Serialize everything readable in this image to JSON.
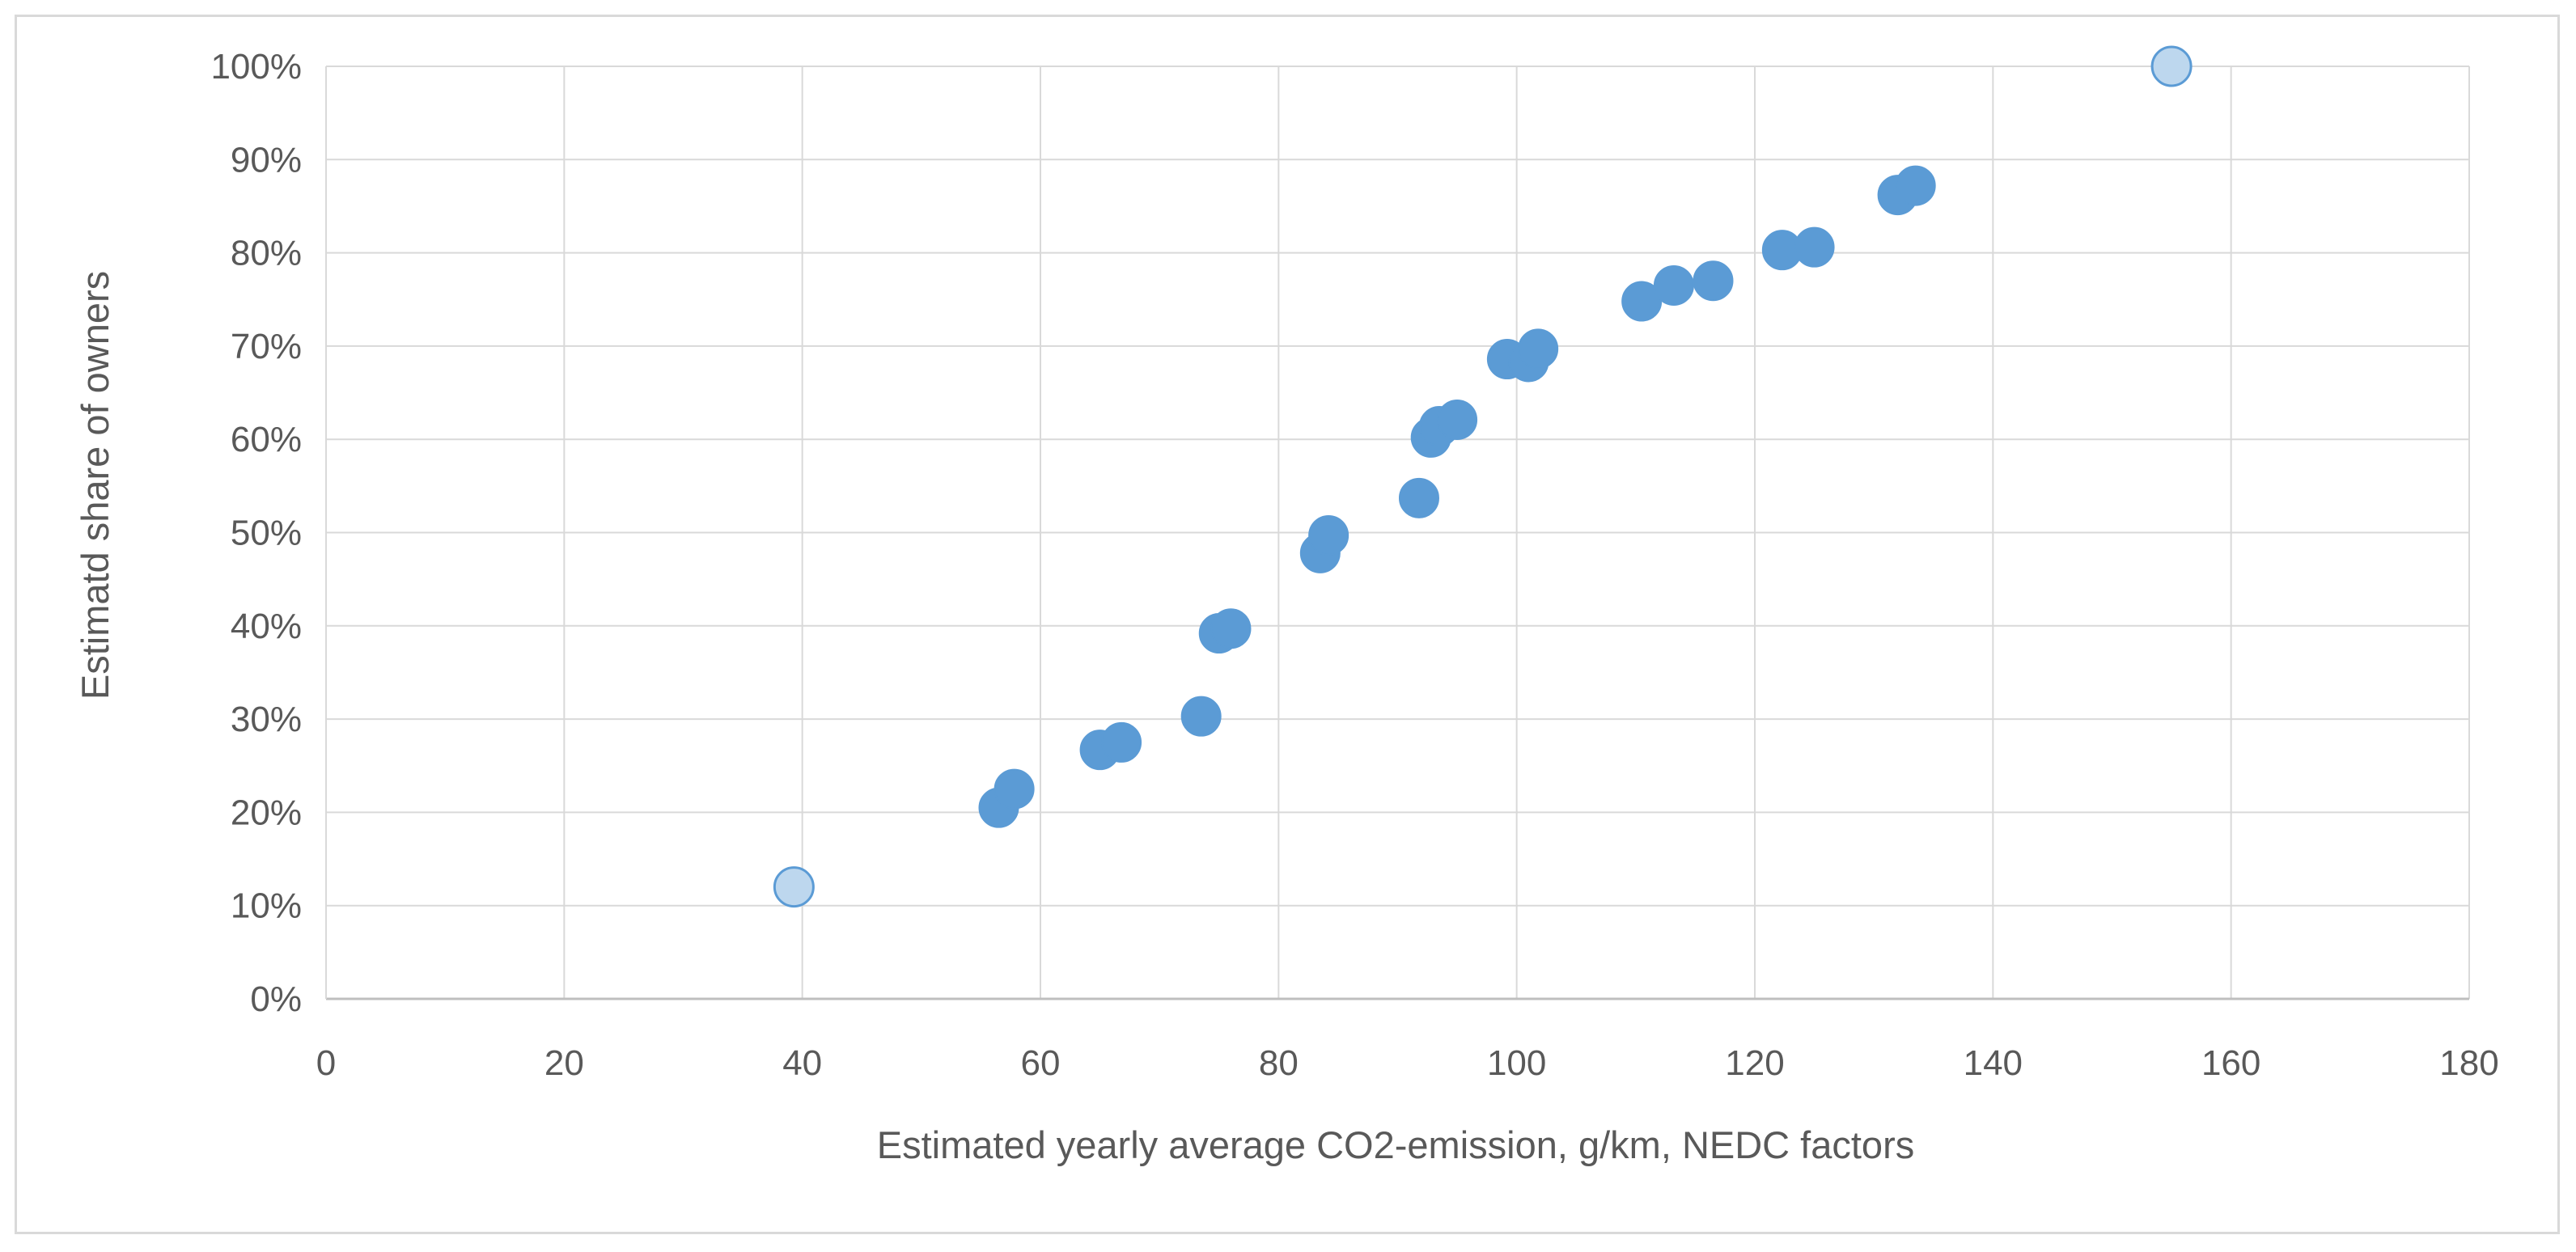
{
  "chart_data": {
    "type": "scatter",
    "title": "",
    "xlabel": "Estimated yearly average CO2-emission, g/km, NEDC factors",
    "ylabel": "Estimatd share of owners",
    "xlim": [
      0,
      180
    ],
    "ylim": [
      0,
      1
    ],
    "x_ticks": [
      0,
      20,
      40,
      60,
      80,
      100,
      120,
      140,
      160,
      180
    ],
    "x_tick_labels": [
      "0",
      "20",
      "40",
      "60",
      "80",
      "100",
      "120",
      "140",
      "160",
      "180"
    ],
    "y_ticks": [
      0,
      0.1,
      0.2,
      0.3,
      0.4,
      0.5,
      0.6,
      0.7,
      0.8,
      0.9,
      1.0
    ],
    "y_tick_labels": [
      "0%",
      "10%",
      "20%",
      "30%",
      "40%",
      "50%",
      "60%",
      "70%",
      "80%",
      "90%",
      "100%"
    ],
    "grid": true,
    "legend": "none",
    "series": [
      {
        "color": "#5b9bd5",
        "points": [
          [
            56.5,
            0.205
          ],
          [
            57.8,
            0.225
          ],
          [
            65.0,
            0.267
          ],
          [
            66.8,
            0.275
          ],
          [
            73.5,
            0.303
          ],
          [
            75.0,
            0.392
          ],
          [
            76.0,
            0.397
          ],
          [
            83.5,
            0.478
          ],
          [
            84.2,
            0.497
          ],
          [
            91.8,
            0.537
          ],
          [
            92.8,
            0.602
          ],
          [
            93.5,
            0.614
          ],
          [
            95.0,
            0.621
          ],
          [
            99.2,
            0.686
          ],
          [
            101.0,
            0.683
          ],
          [
            101.8,
            0.697
          ],
          [
            110.5,
            0.748
          ],
          [
            113.2,
            0.765
          ],
          [
            116.5,
            0.77
          ],
          [
            122.3,
            0.803
          ],
          [
            125.0,
            0.806
          ],
          [
            132.0,
            0.862
          ],
          [
            133.5,
            0.872
          ]
        ]
      },
      {
        "color": "#bdd7ee",
        "edge_color": "#5b9bd5",
        "points": [
          [
            39.3,
            0.12
          ],
          [
            155.0,
            1.0
          ]
        ]
      }
    ]
  }
}
